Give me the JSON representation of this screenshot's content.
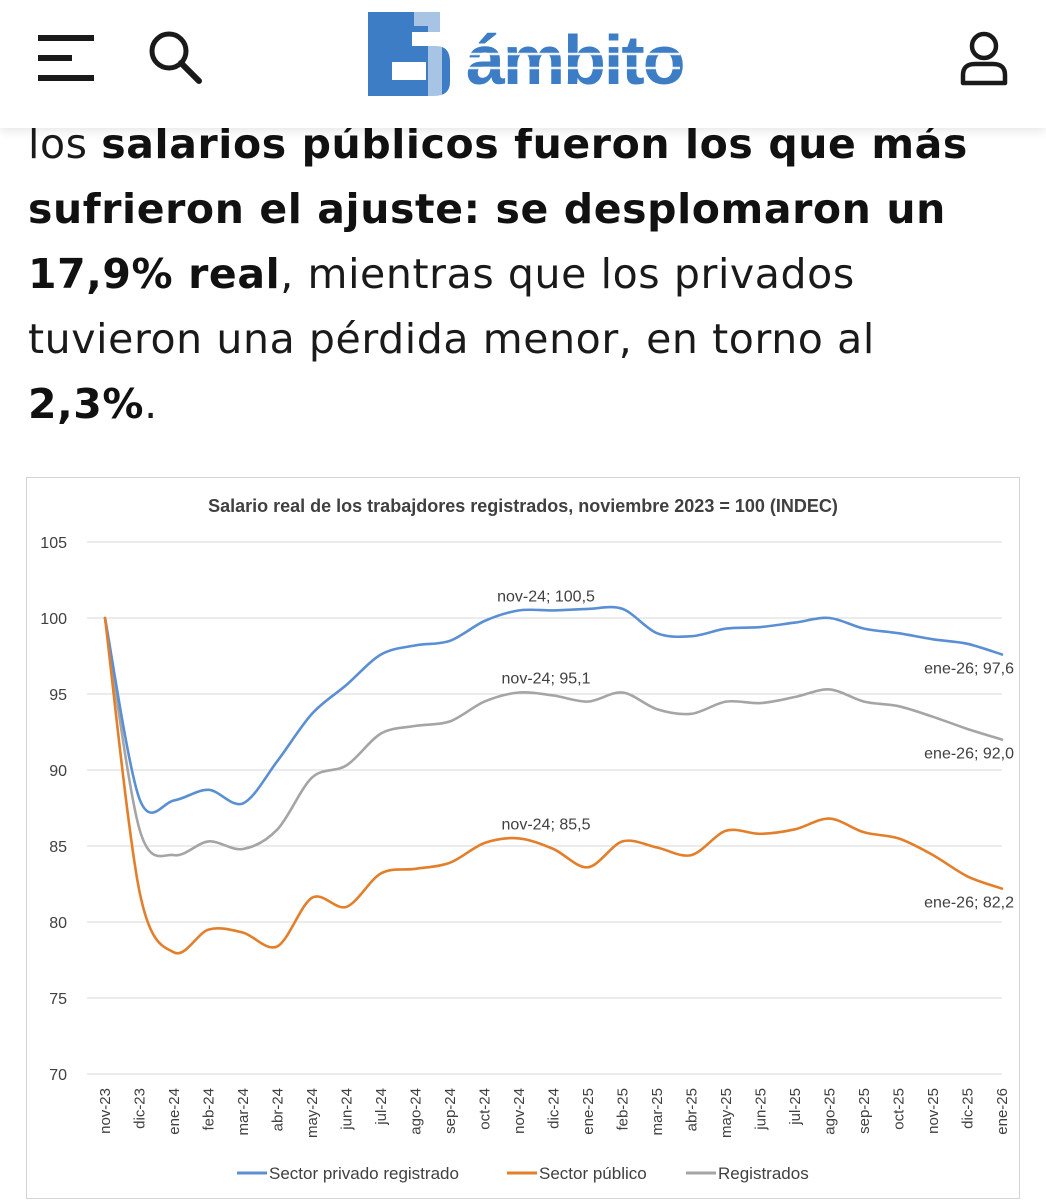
{
  "header": {
    "logo_text": "ámbito",
    "logo_mark": "50",
    "icons": [
      "menu-icon",
      "search-icon",
      "user-icon"
    ]
  },
  "article": {
    "segments": [
      {
        "text": "los ",
        "bold": false
      },
      {
        "text": "salarios públicos fueron los que más sufrieron el ajuste: se desplomaron un 17,9% real",
        "bold": true
      },
      {
        "text": ", mientras que los privados tuvieron una pérdida menor, en torno al ",
        "bold": false
      },
      {
        "text": "2,3%",
        "bold": true
      },
      {
        "text": ".",
        "bold": false
      }
    ]
  },
  "chart_data": {
    "type": "line",
    "title": "Salario real de los trabajdores registrados, noviembre 2023 = 100 (INDEC)",
    "xlabel": "",
    "ylabel": "",
    "ylim": [
      70,
      105
    ],
    "yticks": [
      105,
      100,
      95,
      90,
      85,
      80,
      75,
      70
    ],
    "grid": true,
    "legend_position": "bottom",
    "categories": [
      "nov-23",
      "dic-23",
      "ene-24",
      "feb-24",
      "mar-24",
      "abr-24",
      "may-24",
      "jun-24",
      "jul-24",
      "ago-24",
      "sep-24",
      "oct-24",
      "nov-24",
      "dic-24",
      "ene-25",
      "feb-25",
      "mar-25",
      "abr-25",
      "may-25",
      "jun-25",
      "jul-25",
      "ago-25",
      "sep-25",
      "oct-25",
      "nov-25",
      "dic-25",
      "ene-26"
    ],
    "series": [
      {
        "name": "Sector privado registrado",
        "color": "#5b8fd4",
        "values": [
          100,
          88.1,
          88.0,
          88.7,
          87.8,
          90.6,
          93.7,
          95.6,
          97.6,
          98.2,
          98.5,
          99.8,
          100.5,
          100.5,
          100.6,
          100.6,
          99.0,
          98.8,
          99.3,
          99.4,
          99.7,
          100.0,
          99.3,
          99.0,
          98.6,
          98.3,
          97.6
        ],
        "labels": [
          {
            "index": 12,
            "text": "nov-24; 100,5"
          },
          {
            "index": 26,
            "text": "ene-26; 97,6"
          }
        ]
      },
      {
        "name": "Sector público",
        "color": "#e37f2a",
        "values": [
          100,
          82.0,
          78.0,
          79.5,
          79.3,
          78.4,
          81.6,
          81.0,
          83.2,
          83.5,
          83.9,
          85.2,
          85.5,
          84.8,
          83.6,
          85.3,
          84.9,
          84.4,
          86.0,
          85.8,
          86.1,
          86.8,
          85.9,
          85.5,
          84.4,
          83.0,
          82.2
        ],
        "labels": [
          {
            "index": 12,
            "text": "nov-24; 85,5"
          },
          {
            "index": 26,
            "text": "ene-26; 82,2"
          }
        ]
      },
      {
        "name": "Registrados",
        "color": "#a5a5a5",
        "values": [
          100,
          86.1,
          84.4,
          85.3,
          84.8,
          86.1,
          89.5,
          90.3,
          92.4,
          92.9,
          93.2,
          94.5,
          95.1,
          94.9,
          94.5,
          95.1,
          94.0,
          93.7,
          94.5,
          94.4,
          94.8,
          95.3,
          94.5,
          94.2,
          93.5,
          92.7,
          92.0
        ],
        "labels": [
          {
            "index": 12,
            "text": "nov-24; 95,1"
          },
          {
            "index": 26,
            "text": "ene-26; 92,0"
          }
        ]
      }
    ]
  }
}
